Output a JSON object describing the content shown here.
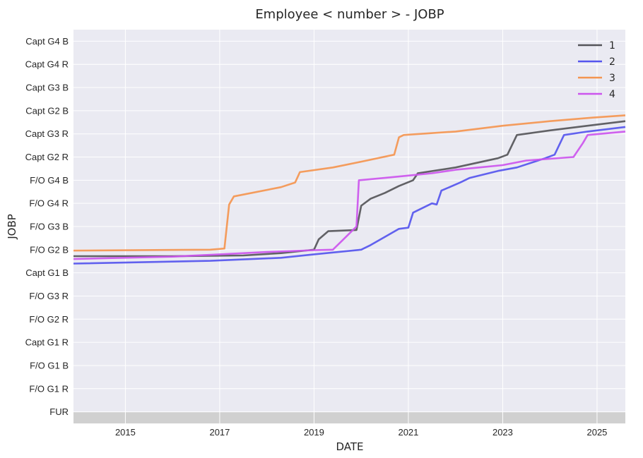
{
  "chart_data": {
    "type": "line",
    "title": "Employee  < number >  -  JOBP",
    "xlabel": "DATE",
    "ylabel": "JOBP",
    "xlim": [
      2013.9,
      2025.6
    ],
    "x_ticks": [
      2015,
      2017,
      2019,
      2021,
      2023,
      2025
    ],
    "categories_y": [
      "FUR",
      "F/O  G1 R",
      "F/O  G1 B",
      "Capt G1 R",
      "F/O  G2 R",
      "F/O  G3 R",
      "Capt G1 B",
      "F/O  G2 B",
      "F/O  G3 B",
      "F/O  G4 R",
      "F/O  G4 B",
      "Capt G2 R",
      "Capt G3 R",
      "Capt G2 B",
      "Capt G3 B",
      "Capt G4 R",
      "Capt G4 B"
    ],
    "ylim": [
      -0.5,
      16.5
    ],
    "grid": true,
    "legend": "top-right",
    "series": [
      {
        "name": "1",
        "color": "#555559",
        "points": [
          [
            2013.9,
            6.72
          ],
          [
            2016.0,
            6.72
          ],
          [
            2017.5,
            6.75
          ],
          [
            2018.3,
            6.85
          ],
          [
            2018.9,
            6.98
          ],
          [
            2019.0,
            7.0
          ],
          [
            2019.1,
            7.45
          ],
          [
            2019.3,
            7.8
          ],
          [
            2019.9,
            7.85
          ],
          [
            2020.0,
            8.9
          ],
          [
            2020.2,
            9.2
          ],
          [
            2020.5,
            9.45
          ],
          [
            2020.8,
            9.75
          ],
          [
            2021.1,
            10.0
          ],
          [
            2021.2,
            10.3
          ],
          [
            2022.0,
            10.55
          ],
          [
            2022.9,
            10.95
          ],
          [
            2023.1,
            11.1
          ],
          [
            2023.3,
            11.95
          ],
          [
            2024.0,
            12.15
          ],
          [
            2024.8,
            12.35
          ],
          [
            2025.6,
            12.55
          ]
        ]
      },
      {
        "name": "2",
        "color": "#5555ee",
        "points": [
          [
            2013.9,
            6.4
          ],
          [
            2016.8,
            6.52
          ],
          [
            2018.3,
            6.65
          ],
          [
            2019.0,
            6.8
          ],
          [
            2020.0,
            7.0
          ],
          [
            2020.2,
            7.2
          ],
          [
            2020.5,
            7.55
          ],
          [
            2020.8,
            7.9
          ],
          [
            2021.0,
            7.95
          ],
          [
            2021.1,
            8.6
          ],
          [
            2021.5,
            9.0
          ],
          [
            2021.6,
            8.95
          ],
          [
            2021.7,
            9.55
          ],
          [
            2022.1,
            9.9
          ],
          [
            2022.3,
            10.1
          ],
          [
            2022.9,
            10.4
          ],
          [
            2023.3,
            10.55
          ],
          [
            2023.9,
            10.95
          ],
          [
            2024.1,
            11.1
          ],
          [
            2024.3,
            11.95
          ],
          [
            2024.8,
            12.1
          ],
          [
            2025.6,
            12.3
          ]
        ]
      },
      {
        "name": "3",
        "color": "#f49550",
        "points": [
          [
            2013.9,
            6.96
          ],
          [
            2016.8,
            7.0
          ],
          [
            2017.1,
            7.05
          ],
          [
            2017.2,
            8.95
          ],
          [
            2017.3,
            9.3
          ],
          [
            2018.3,
            9.7
          ],
          [
            2018.6,
            9.9
          ],
          [
            2018.7,
            10.35
          ],
          [
            2019.4,
            10.55
          ],
          [
            2020.0,
            10.8
          ],
          [
            2020.7,
            11.1
          ],
          [
            2020.8,
            11.85
          ],
          [
            2020.9,
            11.95
          ],
          [
            2022.0,
            12.1
          ],
          [
            2023.0,
            12.35
          ],
          [
            2024.0,
            12.55
          ],
          [
            2024.9,
            12.7
          ],
          [
            2025.6,
            12.8
          ]
        ]
      },
      {
        "name": "4",
        "color": "#cc55ee",
        "points": [
          [
            2013.9,
            6.6
          ],
          [
            2016.0,
            6.7
          ],
          [
            2017.0,
            6.8
          ],
          [
            2018.0,
            6.9
          ],
          [
            2019.0,
            6.98
          ],
          [
            2019.4,
            7.0
          ],
          [
            2019.6,
            7.4
          ],
          [
            2019.8,
            7.8
          ],
          [
            2019.9,
            8.0
          ],
          [
            2019.95,
            10.0
          ],
          [
            2020.5,
            10.1
          ],
          [
            2021.0,
            10.2
          ],
          [
            2021.5,
            10.3
          ],
          [
            2022.0,
            10.45
          ],
          [
            2022.5,
            10.55
          ],
          [
            2023.0,
            10.65
          ],
          [
            2023.5,
            10.85
          ],
          [
            2024.5,
            11.0
          ],
          [
            2024.7,
            11.6
          ],
          [
            2024.8,
            11.95
          ],
          [
            2025.6,
            12.1
          ]
        ]
      }
    ]
  }
}
